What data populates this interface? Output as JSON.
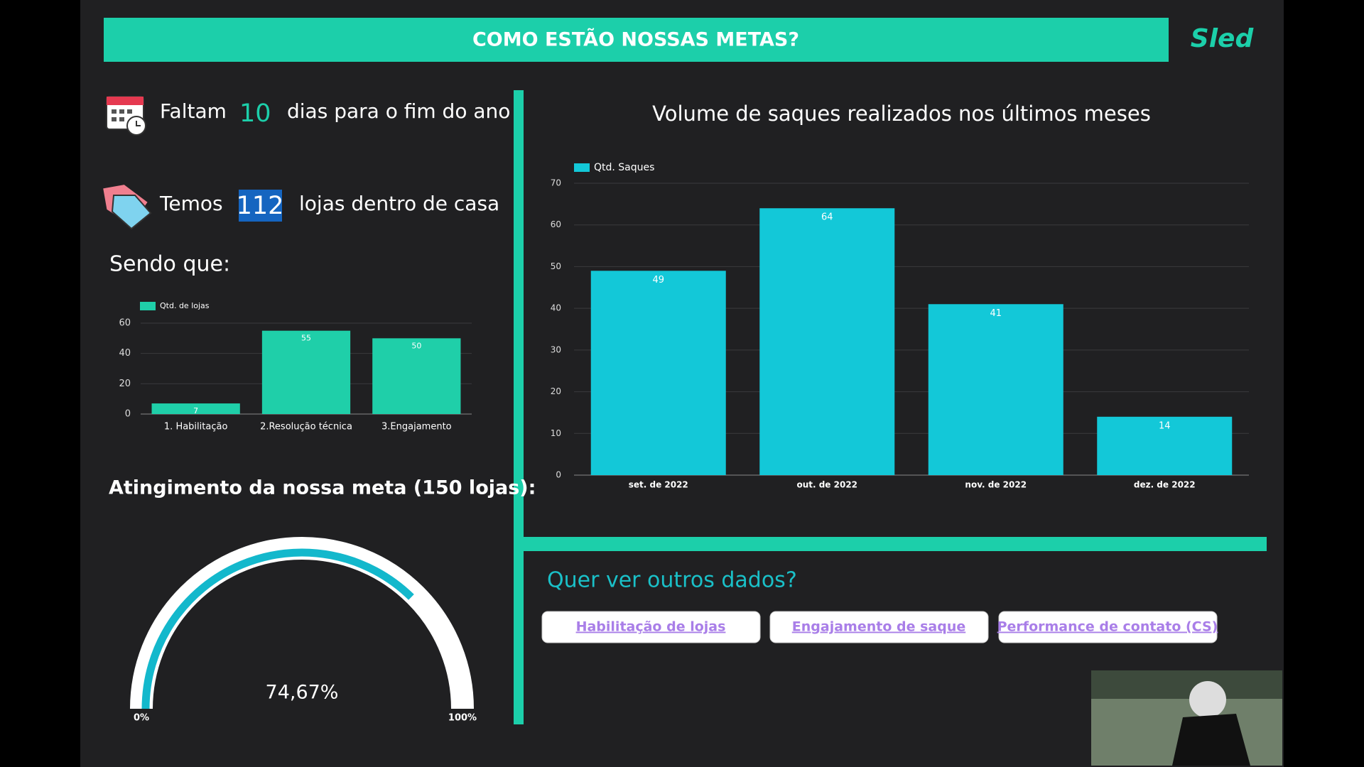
{
  "header": {
    "title": "COMO ESTÃO NOSSAS METAS?",
    "logo": "Sled"
  },
  "countdown": {
    "prefix": "Faltam",
    "value": 10,
    "suffix": "dias para o fim do ano"
  },
  "stores": {
    "prefix": "Temos",
    "value": 112,
    "suffix": "lojas dentro de casa"
  },
  "section_title": "Sendo que:",
  "chart_data": [
    {
      "type": "bar",
      "categories": [
        "1. Habilitação",
        "2.Resolução técnica",
        "3.Engajamento"
      ],
      "series": [
        {
          "name": "Qtd. de lojas",
          "color": "#1fcfa9",
          "values": [
            7,
            55,
            50
          ]
        }
      ],
      "ylim": [
        0,
        60
      ],
      "yticks": [
        0,
        20,
        40,
        60
      ],
      "grid": true
    },
    {
      "type": "bar",
      "title": "Volume de saques realizados nos últimos meses",
      "categories": [
        "set. de 2022",
        "out. de 2022",
        "nov. de 2022",
        "dez. de 2022"
      ],
      "series": [
        {
          "name": "Qtd. Saques",
          "color": "#13c8d8",
          "values": [
            49,
            64,
            41,
            14
          ]
        }
      ],
      "ylim": [
        0,
        70
      ],
      "yticks": [
        0,
        10,
        20,
        30,
        40,
        50,
        60,
        70
      ],
      "grid": true
    },
    {
      "type": "gauge",
      "title": "Atingimento da nossa meta (150 lojas):",
      "values": [
        74.67
      ],
      "value_labels": [
        "74,67%"
      ],
      "color": "#13b8cc",
      "ylim": [
        0,
        100
      ],
      "yticks": [
        {
          "value": 0,
          "label": "0%"
        },
        {
          "value": 100,
          "label": "100%"
        }
      ]
    }
  ],
  "links": {
    "title": "Quer ver outros dados?",
    "items": [
      "Habilitação de lojas",
      "Engajamento de saque",
      "Performance de contato (CS)"
    ]
  }
}
